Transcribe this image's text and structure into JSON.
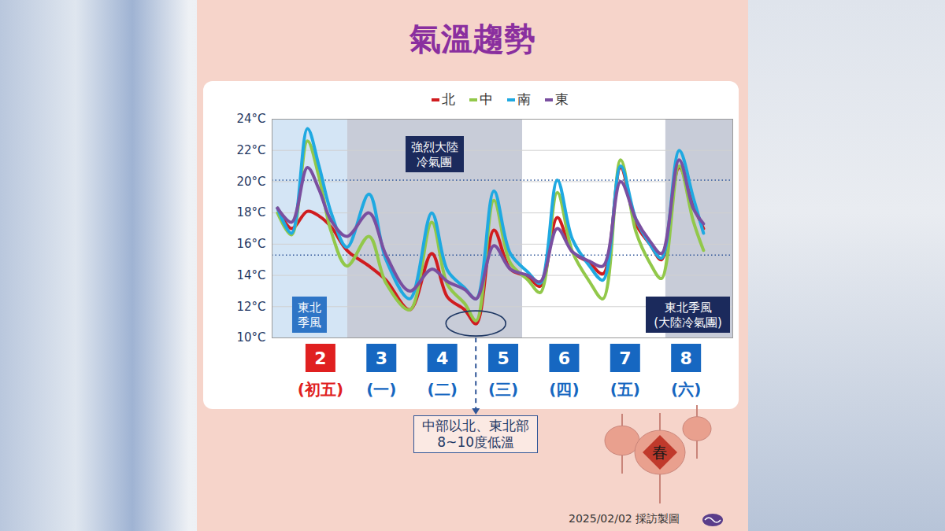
{
  "chart_data": {
    "type": "line",
    "title": "氣溫趨勢",
    "x": [
      1.29,
      1.52,
      1.78,
      1.97,
      2.17,
      2.43,
      2.79,
      3.07,
      3.46,
      3.82,
      4.08,
      4.36,
      4.55,
      4.84,
      5.11,
      5.4,
      5.6,
      5.88,
      6.13,
      6.41,
      6.63,
      6.92,
      7.17,
      7.4,
      7.59,
      7.88,
      8.11,
      8.28
    ],
    "xlim": [
      1.2,
      8.76
    ],
    "xticks": [
      {
        "value": 2,
        "label": "2",
        "sublabel": "(初五)",
        "color": "#e02020"
      },
      {
        "value": 3,
        "label": "3",
        "sublabel": "(一)",
        "color": "#1667c1"
      },
      {
        "value": 4,
        "label": "4",
        "sublabel": "(二)",
        "color": "#1667c1"
      },
      {
        "value": 5,
        "label": "5",
        "sublabel": "(三)",
        "color": "#1667c1"
      },
      {
        "value": 6,
        "label": "6",
        "sublabel": "(四)",
        "color": "#1667c1"
      },
      {
        "value": 7,
        "label": "7",
        "sublabel": "(五)",
        "color": "#1667c1"
      },
      {
        "value": 8,
        "label": "8",
        "sublabel": "(六)",
        "color": "#1667c1"
      }
    ],
    "ylim": [
      10,
      24
    ],
    "yticks": [
      {
        "value": 10,
        "label": "10°C"
      },
      {
        "value": 12,
        "label": "12°C"
      },
      {
        "value": 14,
        "label": "14°C"
      },
      {
        "value": 16,
        "label": "16°C"
      },
      {
        "value": 18,
        "label": "18°C"
      },
      {
        "value": 20,
        "label": "20°C"
      },
      {
        "value": 22,
        "label": "22°C"
      },
      {
        "value": 24,
        "label": "24°C"
      }
    ],
    "grid": true,
    "legend": "top",
    "series": [
      {
        "name": "北",
        "color": "#d01c1f",
        "values": [
          18.3,
          17.0,
          18.1,
          17.8,
          17.1,
          15.6,
          14.6,
          13.7,
          11.8,
          15.4,
          12.6,
          11.8,
          10.9,
          16.9,
          14.4,
          13.9,
          13.3,
          17.7,
          15.5,
          14.8,
          14.1,
          20.9,
          17.3,
          16.0,
          15.0,
          20.9,
          18.5,
          17.0
        ]
      },
      {
        "name": "中",
        "color": "#92c84a",
        "values": [
          18.0,
          16.6,
          22.6,
          20.3,
          16.8,
          14.6,
          16.5,
          13.5,
          11.8,
          17.4,
          13.4,
          12.2,
          11.1,
          18.8,
          14.8,
          13.7,
          12.9,
          19.3,
          15.5,
          13.6,
          12.5,
          21.4,
          16.8,
          14.8,
          13.8,
          21.0,
          17.5,
          15.6
        ]
      },
      {
        "name": "南",
        "color": "#1fa9e1",
        "values": [
          18.3,
          16.7,
          23.4,
          21.0,
          18.0,
          15.8,
          19.2,
          15.0,
          12.5,
          18.0,
          14.3,
          13.2,
          12.5,
          19.4,
          15.4,
          14.2,
          13.5,
          20.1,
          16.3,
          14.6,
          13.7,
          21.0,
          17.6,
          16.0,
          15.1,
          22.0,
          19.0,
          16.7
        ]
      },
      {
        "name": "東",
        "color": "#7a4fa0",
        "values": [
          18.3,
          17.4,
          20.9,
          19.5,
          17.5,
          16.5,
          18.0,
          15.3,
          13.0,
          14.4,
          13.6,
          13.1,
          12.5,
          15.9,
          14.4,
          14.0,
          13.6,
          17.0,
          15.5,
          14.9,
          14.6,
          20.0,
          17.6,
          16.2,
          15.4,
          21.4,
          18.3,
          17.3
        ]
      }
    ],
    "reference_lines": [
      20.1,
      15.3
    ],
    "bands": [
      {
        "from": 1.2,
        "to": 2.44,
        "label": [
          "東北",
          "季風"
        ],
        "color": "#d4e5f5"
      },
      {
        "from": 2.44,
        "to": 5.31,
        "label": [
          "強烈大陸",
          "冷氣團"
        ],
        "color": "#c8ccd8"
      },
      {
        "from": 7.66,
        "to": 8.76,
        "label": [
          "東北季風",
          "(大陸冷氣團)"
        ],
        "color": "#c8ccd8"
      }
    ],
    "annotation": [
      "中部以北、東北部",
      "8~10度低溫"
    ],
    "source": "2025/02/02 採訪製圖",
    "decoration": "春"
  }
}
